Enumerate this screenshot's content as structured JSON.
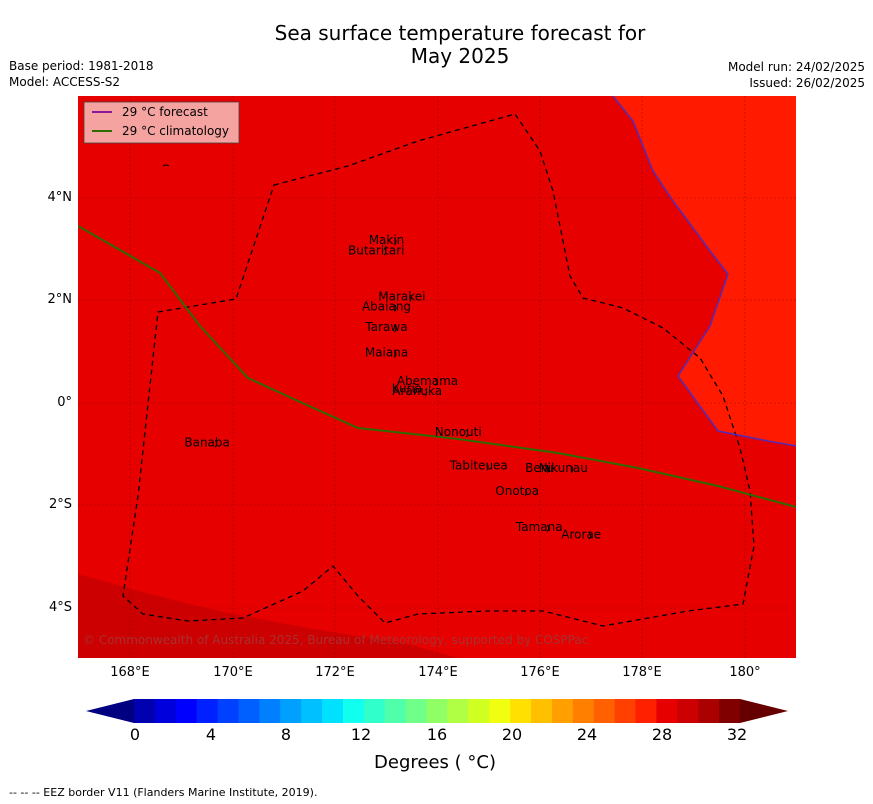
{
  "header": {
    "title_line1": "Sea surface temperature forecast for",
    "title_line2": "May 2025",
    "base_period": "Base period: 1981-2018",
    "model": "Model: ACCESS-S2",
    "model_run": "Model run: 24/02/2025",
    "issued": "Issued: 26/02/2025"
  },
  "legend": {
    "forecast": "29 °C  forecast",
    "climatology": "29 °C  climatology",
    "forecast_color": "#8b1a9a",
    "climatology_color": "#2e6b00"
  },
  "map": {
    "x_ticks": [
      "168°E",
      "170°E",
      "172°E",
      "174°E",
      "176°E",
      "178°E",
      "180°"
    ],
    "y_ticks": [
      "4°N",
      "2°N",
      "0°",
      "2°S",
      "4°S"
    ],
    "copyright": "© Commonwealth of Australia 2025, Bureau of Meteorology, supported by COSPPac",
    "fill_colors": {
      "main": "#e60000",
      "warm": "#ff1a00",
      "cool": "#cc0000"
    },
    "islands": [
      {
        "name": "Makin",
        "lon": 173.0,
        "lat": 3.1
      },
      {
        "name": "Butaritari",
        "lon": 172.8,
        "lat": 2.9
      },
      {
        "name": "Marakei",
        "lon": 173.3,
        "lat": 2.0
      },
      {
        "name": "Abaiang",
        "lon": 173.0,
        "lat": 1.8
      },
      {
        "name": "Tarawa",
        "lon": 173.0,
        "lat": 1.4
      },
      {
        "name": "Maiana",
        "lon": 173.0,
        "lat": 0.9
      },
      {
        "name": "Abemama",
        "lon": 173.8,
        "lat": 0.35
      },
      {
        "name": "Kuria",
        "lon": 173.4,
        "lat": 0.2
      },
      {
        "name": "Aranuka",
        "lon": 173.6,
        "lat": 0.15
      },
      {
        "name": "Nonouti",
        "lon": 174.4,
        "lat": -0.65
      },
      {
        "name": "Banaba",
        "lon": 169.5,
        "lat": -0.85
      },
      {
        "name": "Tabiteuea",
        "lon": 174.8,
        "lat": -1.3
      },
      {
        "name": "Beru",
        "lon": 175.98,
        "lat": -1.35
      },
      {
        "name": "Nikunau",
        "lon": 176.45,
        "lat": -1.35
      },
      {
        "name": "Onotoa",
        "lon": 175.55,
        "lat": -1.8
      },
      {
        "name": "Tamana",
        "lon": 175.98,
        "lat": -2.5
      },
      {
        "name": "Arorae",
        "lon": 176.8,
        "lat": -2.65
      }
    ]
  },
  "colorbar": {
    "ticks": [
      "0",
      "4",
      "8",
      "12",
      "16",
      "20",
      "24",
      "28",
      "32"
    ],
    "label": "Degrees ( °C)",
    "colors": [
      "#000080",
      "#0000b0",
      "#0000dd",
      "#0000ff",
      "#0020ff",
      "#0040ff",
      "#0060ff",
      "#0080ff",
      "#00a0ff",
      "#00c0ff",
      "#00e0ff",
      "#10ffee",
      "#30ffcc",
      "#50ffaa",
      "#70ff88",
      "#90ff66",
      "#b0ff44",
      "#d0ff22",
      "#f0ff10",
      "#ffe000",
      "#ffc000",
      "#ffa000",
      "#ff8000",
      "#ff6000",
      "#ff4000",
      "#ff2000",
      "#e60000",
      "#cc0000",
      "#aa0000",
      "#800000",
      "#660000"
    ]
  },
  "footnote": "--  --  -- EEZ border V11 (Flanders Marine Institute, 2019)."
}
